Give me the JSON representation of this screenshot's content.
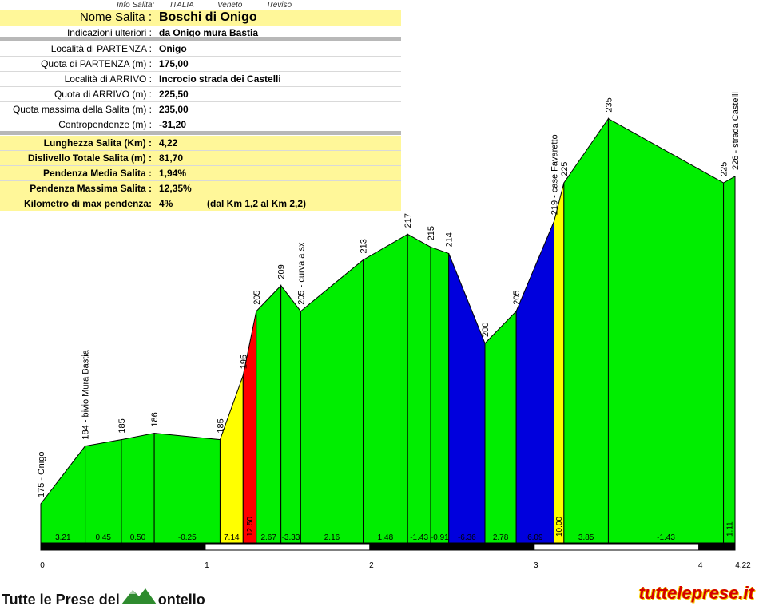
{
  "header_meta": {
    "label": "Info Salita:",
    "country": "ITALIA",
    "region": "Veneto",
    "province": "Treviso"
  },
  "info": {
    "name_label": "Nome Salita :",
    "name_value": "Boschi di Onigo",
    "extra_label": "Indicazioni ulteriori :",
    "extra_value": "da Onigo mura Bastia",
    "rows": [
      {
        "label": "Località di PARTENZA :",
        "value": "Onigo"
      },
      {
        "label": "Quota di PARTENZA (m) :",
        "value": "175,00"
      },
      {
        "label": "Località di ARRIVO :",
        "value": "Incrocio strada dei Castelli"
      },
      {
        "label": "Quota di ARRIVO (m) :",
        "value": "225,50"
      },
      {
        "label": "Quota massima della Salita (m) :",
        "value": "235,00"
      },
      {
        "label": "Contropendenze (m) :",
        "value": "-31,20"
      }
    ],
    "summary": [
      {
        "label": "Lunghezza Salita (Km) :",
        "value": "4,22"
      },
      {
        "label": "Dislivello Totale Salita (m) :",
        "value": "81,70"
      },
      {
        "label": "Pendenza Media Salita :",
        "value": "1,94%"
      },
      {
        "label": "Pendenza Massima Salita :",
        "value": "12,35%"
      },
      {
        "label": "Kilometro di max pendenza:",
        "value": "4%",
        "note": "(dal Km 1,2 al Km 2,2)"
      }
    ]
  },
  "chart_data": {
    "type": "area",
    "title": "",
    "xlabel": "",
    "ylabel": "",
    "xlim": [
      0,
      4.22
    ],
    "x_ticks": [
      "0",
      "1",
      "2",
      "3",
      "4",
      "4.22"
    ],
    "x_tick_values": [
      0,
      1,
      2,
      3,
      4,
      4.22
    ],
    "points": [
      {
        "x": 0.0,
        "y": 175,
        "label": "175 - Onigo"
      },
      {
        "x": 0.27,
        "y": 184,
        "label": "184 - bivio Mura Bastia"
      },
      {
        "x": 0.49,
        "y": 185,
        "label": "185"
      },
      {
        "x": 0.69,
        "y": 186,
        "label": "186"
      },
      {
        "x": 1.09,
        "y": 185,
        "label": "185"
      },
      {
        "x": 1.23,
        "y": 195,
        "label": "195"
      },
      {
        "x": 1.31,
        "y": 205,
        "label": "205"
      },
      {
        "x": 1.46,
        "y": 209,
        "label": "209"
      },
      {
        "x": 1.58,
        "y": 205,
        "label": "205 - curva a sx"
      },
      {
        "x": 1.96,
        "y": 213,
        "label": "213"
      },
      {
        "x": 2.23,
        "y": 217,
        "label": "217"
      },
      {
        "x": 2.37,
        "y": 215,
        "label": "215"
      },
      {
        "x": 2.48,
        "y": 214,
        "label": "214"
      },
      {
        "x": 2.7,
        "y": 200,
        "label": "200"
      },
      {
        "x": 2.89,
        "y": 205,
        "label": "205"
      },
      {
        "x": 3.12,
        "y": 219,
        "label": "219 - case Favaretto"
      },
      {
        "x": 3.18,
        "y": 225,
        "label": "225"
      },
      {
        "x": 3.45,
        "y": 235,
        "label": "235"
      },
      {
        "x": 4.15,
        "y": 225,
        "label": "225"
      },
      {
        "x": 4.22,
        "y": 226,
        "label": "226 - strada Castelli"
      }
    ],
    "segment_gradients": [
      "3.21",
      "0.45",
      "0.50",
      "-0.25",
      "7.14",
      "12.50",
      "2.67",
      "-3.33",
      "2.16",
      "1.48",
      "-1.43",
      "-0.91",
      "-6.36",
      "2.78",
      "6.09",
      "10.00",
      "3.85",
      "-1.43",
      "1.11"
    ],
    "segment_colors": [
      "#00ee00",
      "#00ee00",
      "#00ee00",
      "#00ee00",
      "#ffff00",
      "#ff0000",
      "#00ee00",
      "#00ee00",
      "#00ee00",
      "#00ee00",
      "#00ee00",
      "#00ee00",
      "#0000dd",
      "#00ee00",
      "#0000dd",
      "#ffff00",
      "#00ee00",
      "#00ee00",
      "#00ee00"
    ]
  },
  "footer": {
    "left_text_a": "Tutte le Prese del",
    "left_text_b": "ontello",
    "right_text": "tutteleprese.it"
  }
}
